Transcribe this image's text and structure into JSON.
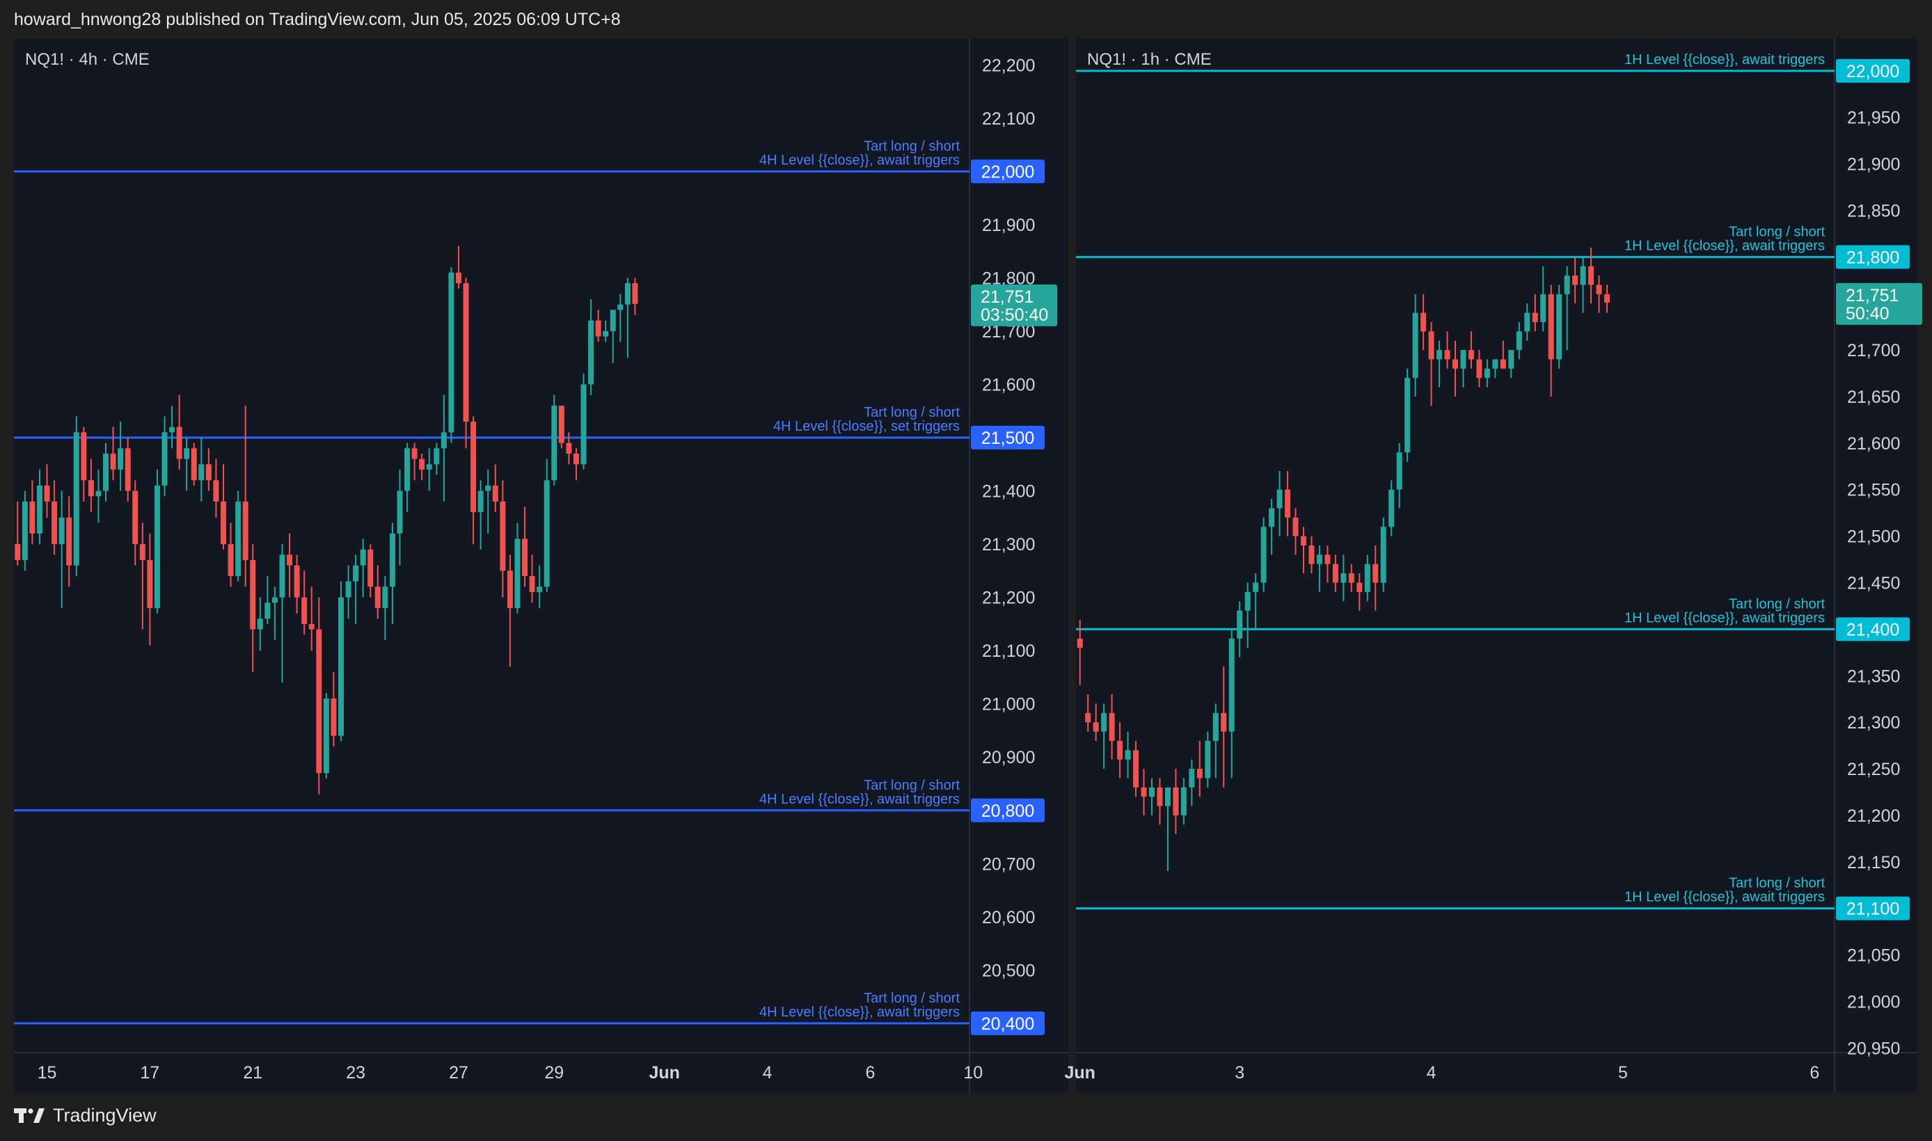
{
  "header": {
    "text": "howard_hnwong28 published on TradingView.com, Jun 05, 2025 06:09 UTC+8"
  },
  "footer": {
    "brand": "TradingView",
    "logo_icon": "tradingview-logo-icon"
  },
  "colors": {
    "background": "#131722",
    "frame": "#1e1e1e",
    "up": "#26a69a",
    "down": "#ef5350",
    "level_4h": "#2962ff",
    "level_4h_text": "#4a7dff",
    "level_1h": "#00bcd4",
    "level_1h_text": "#22c3d8",
    "price_badge": "#26a69a"
  },
  "chart_data": [
    {
      "type": "candlestick",
      "title": "NQ1! · 4h · CME",
      "symbol": "NQ1!",
      "interval": "4h",
      "exchange": "CME",
      "ylim": [
        20345,
        22250
      ],
      "y_ticks": [
        "22,200",
        "22,100",
        "21,900",
        "21,800",
        "21,700",
        "21,600",
        "21,400",
        "21,300",
        "21,200",
        "21,100",
        "21,000",
        "20,900",
        "20,700",
        "20,600",
        "20,500"
      ],
      "y_tick_values": [
        22200,
        22100,
        21900,
        21800,
        21700,
        21600,
        21400,
        21300,
        21200,
        21100,
        21000,
        20900,
        20700,
        20600,
        20500
      ],
      "x_ticks": [
        "15",
        "17",
        "21",
        "23",
        "27",
        "29",
        "Jun",
        "4",
        "6",
        "10"
      ],
      "x_tick_bold": [
        false,
        false,
        false,
        false,
        false,
        false,
        true,
        false,
        false,
        false
      ],
      "candle_count_span": 130,
      "x_tick_index": [
        4,
        18,
        32,
        46,
        60,
        73,
        88,
        102,
        116,
        130
      ],
      "levels": [
        {
          "price": 22000,
          "badge": "22,000",
          "line1": "Tart long / short",
          "line2": "4H Level {{close}}, await triggers"
        },
        {
          "price": 21500,
          "badge": "21,500",
          "line1": "Tart long / short",
          "line2": "4H Level {{close}}, set triggers"
        },
        {
          "price": 20800,
          "badge": "20,800",
          "line1": "Tart long / short",
          "line2": "4H Level {{close}}, await triggers"
        },
        {
          "price": 20400,
          "badge": "20,400",
          "line1": "Tart long / short",
          "line2": "4H Level {{close}}, await triggers"
        }
      ],
      "last_price": {
        "price": 21751,
        "badge": "21,751",
        "countdown": "03:50:40"
      },
      "candles": [
        [
          21300,
          21380,
          21260,
          21270
        ],
        [
          21270,
          21400,
          21250,
          21380
        ],
        [
          21380,
          21420,
          21300,
          21320
        ],
        [
          21320,
          21440,
          21300,
          21410
        ],
        [
          21410,
          21450,
          21350,
          21380
        ],
        [
          21380,
          21420,
          21280,
          21300
        ],
        [
          21300,
          21400,
          21180,
          21350
        ],
        [
          21350,
          21390,
          21220,
          21260
        ],
        [
          21260,
          21540,
          21240,
          21510
        ],
        [
          21510,
          21520,
          21380,
          21420
        ],
        [
          21420,
          21460,
          21360,
          21390
        ],
        [
          21390,
          21440,
          21340,
          21400
        ],
        [
          21400,
          21490,
          21380,
          21470
        ],
        [
          21470,
          21520,
          21420,
          21440
        ],
        [
          21440,
          21530,
          21400,
          21480
        ],
        [
          21480,
          21500,
          21380,
          21400
        ],
        [
          21400,
          21420,
          21260,
          21300
        ],
        [
          21300,
          21340,
          21140,
          21270
        ],
        [
          21270,
          21320,
          21110,
          21180
        ],
        [
          21180,
          21440,
          21170,
          21410
        ],
        [
          21410,
          21540,
          21390,
          21510
        ],
        [
          21510,
          21560,
          21480,
          21520
        ],
        [
          21520,
          21580,
          21440,
          21460
        ],
        [
          21460,
          21500,
          21400,
          21480
        ],
        [
          21480,
          21490,
          21410,
          21420
        ],
        [
          21420,
          21500,
          21380,
          21450
        ],
        [
          21450,
          21480,
          21400,
          21420
        ],
        [
          21420,
          21460,
          21350,
          21380
        ],
        [
          21380,
          21450,
          21290,
          21300
        ],
        [
          21300,
          21340,
          21220,
          21240
        ],
        [
          21240,
          21400,
          21230,
          21380
        ],
        [
          21380,
          21560,
          21220,
          21270
        ],
        [
          21270,
          21300,
          21060,
          21140
        ],
        [
          21140,
          21200,
          21100,
          21160
        ],
        [
          21160,
          21240,
          21150,
          21190
        ],
        [
          21190,
          21220,
          21120,
          21200
        ],
        [
          21200,
          21300,
          21040,
          21280
        ],
        [
          21280,
          21320,
          21200,
          21260
        ],
        [
          21260,
          21280,
          21170,
          21200
        ],
        [
          21200,
          21250,
          21130,
          21150
        ],
        [
          21150,
          21220,
          21100,
          21140
        ],
        [
          21140,
          21200,
          20830,
          20870
        ],
        [
          20870,
          21020,
          20860,
          21010
        ],
        [
          21010,
          21060,
          20920,
          20940
        ],
        [
          20940,
          21230,
          20930,
          21200
        ],
        [
          21200,
          21260,
          21160,
          21230
        ],
        [
          21230,
          21280,
          21150,
          21260
        ],
        [
          21260,
          21310,
          21200,
          21290
        ],
        [
          21290,
          21300,
          21200,
          21220
        ],
        [
          21220,
          21260,
          21160,
          21180
        ],
        [
          21180,
          21240,
          21120,
          21220
        ],
        [
          21220,
          21340,
          21150,
          21320
        ],
        [
          21320,
          21440,
          21260,
          21400
        ],
        [
          21400,
          21490,
          21360,
          21480
        ],
        [
          21480,
          21490,
          21420,
          21460
        ],
        [
          21460,
          21470,
          21420,
          21440
        ],
        [
          21440,
          21480,
          21400,
          21450
        ],
        [
          21450,
          21490,
          21430,
          21480
        ],
        [
          21480,
          21580,
          21380,
          21510
        ],
        [
          21510,
          21820,
          21490,
          21810
        ],
        [
          21810,
          21860,
          21780,
          21790
        ],
        [
          21790,
          21800,
          21480,
          21530
        ],
        [
          21530,
          21540,
          21300,
          21360
        ],
        [
          21360,
          21420,
          21290,
          21400
        ],
        [
          21400,
          21440,
          21320,
          21410
        ],
        [
          21410,
          21450,
          21360,
          21380
        ],
        [
          21380,
          21420,
          21200,
          21250
        ],
        [
          21250,
          21280,
          21070,
          21180
        ],
        [
          21180,
          21340,
          21170,
          21310
        ],
        [
          21310,
          21370,
          21220,
          21240
        ],
        [
          21240,
          21280,
          21190,
          21210
        ],
        [
          21210,
          21260,
          21180,
          21220
        ],
        [
          21220,
          21460,
          21210,
          21420
        ],
        [
          21420,
          21580,
          21410,
          21560
        ],
        [
          21560,
          21560,
          21480,
          21490
        ],
        [
          21490,
          21510,
          21450,
          21470
        ],
        [
          21470,
          21480,
          21420,
          21450
        ],
        [
          21450,
          21620,
          21440,
          21600
        ],
        [
          21600,
          21760,
          21580,
          21720
        ],
        [
          21720,
          21740,
          21680,
          21690
        ],
        [
          21690,
          21720,
          21680,
          21700
        ],
        [
          21700,
          21740,
          21640,
          21740
        ],
        [
          21740,
          21770,
          21680,
          21750
        ],
        [
          21750,
          21800,
          21650,
          21790
        ],
        [
          21790,
          21800,
          21730,
          21751
        ]
      ]
    },
    {
      "type": "candlestick",
      "title": "NQ1! · 1h · CME",
      "symbol": "NQ1!",
      "interval": "1h",
      "exchange": "CME",
      "ylim": [
        20945,
        22035
      ],
      "y_ticks": [
        "21,950",
        "21,900",
        "21,850",
        "21,700",
        "21,650",
        "21,600",
        "21,550",
        "21,500",
        "21,450",
        "21,350",
        "21,300",
        "21,250",
        "21,200",
        "21,150",
        "21,050",
        "21,000",
        "20,950"
      ],
      "y_tick_values": [
        21950,
        21900,
        21850,
        21700,
        21650,
        21600,
        21550,
        21500,
        21450,
        21350,
        21300,
        21250,
        21200,
        21150,
        21050,
        21000,
        20950
      ],
      "x_ticks": [
        "Jun",
        "3",
        "4",
        "5",
        "6"
      ],
      "x_tick_bold": [
        true,
        false,
        false,
        false,
        false
      ],
      "candle_count_span": 95,
      "x_tick_index": [
        0,
        20,
        44,
        68,
        92
      ],
      "levels": [
        {
          "price": 22000,
          "badge": "22,000",
          "line1": "",
          "line2": "1H Level {{close}}, await triggers"
        },
        {
          "price": 21800,
          "badge": "21,800",
          "line1": "Tart long / short",
          "line2": "1H Level {{close}}, await triggers"
        },
        {
          "price": 21400,
          "badge": "21,400",
          "line1": "Tart long / short",
          "line2": "1H Level {{close}}, await triggers"
        },
        {
          "price": 21100,
          "badge": "21,100",
          "line1": "Tart long / short",
          "line2": "1H Level {{close}}, await triggers"
        }
      ],
      "last_price": {
        "price": 21751,
        "badge": "21,751",
        "countdown": "50:40"
      },
      "candles": [
        [
          21390,
          21410,
          21340,
          21380
        ],
        [
          21310,
          21330,
          21290,
          21300
        ],
        [
          21300,
          21320,
          21280,
          21290
        ],
        [
          21290,
          21320,
          21250,
          21310
        ],
        [
          21310,
          21330,
          21260,
          21280
        ],
        [
          21280,
          21300,
          21240,
          21260
        ],
        [
          21260,
          21290,
          21240,
          21270
        ],
        [
          21270,
          21280,
          21220,
          21230
        ],
        [
          21230,
          21250,
          21200,
          21220
        ],
        [
          21220,
          21240,
          21200,
          21230
        ],
        [
          21230,
          21240,
          21190,
          21210
        ],
        [
          21210,
          21230,
          21140,
          21230
        ],
        [
          21230,
          21250,
          21180,
          21200
        ],
        [
          21200,
          21240,
          21190,
          21230
        ],
        [
          21230,
          21260,
          21210,
          21250
        ],
        [
          21250,
          21280,
          21220,
          21240
        ],
        [
          21240,
          21290,
          21230,
          21280
        ],
        [
          21280,
          21320,
          21240,
          21310
        ],
        [
          21310,
          21360,
          21230,
          21290
        ],
        [
          21290,
          21400,
          21240,
          21390
        ],
        [
          21390,
          21430,
          21370,
          21420
        ],
        [
          21420,
          21450,
          21380,
          21440
        ],
        [
          21440,
          21460,
          21400,
          21450
        ],
        [
          21450,
          21520,
          21440,
          21510
        ],
        [
          21510,
          21540,
          21480,
          21530
        ],
        [
          21530,
          21570,
          21500,
          21550
        ],
        [
          21550,
          21570,
          21500,
          21520
        ],
        [
          21520,
          21530,
          21480,
          21500
        ],
        [
          21500,
          21510,
          21460,
          21490
        ],
        [
          21490,
          21500,
          21460,
          21470
        ],
        [
          21470,
          21490,
          21440,
          21480
        ],
        [
          21480,
          21490,
          21450,
          21470
        ],
        [
          21470,
          21480,
          21440,
          21450
        ],
        [
          21450,
          21480,
          21430,
          21460
        ],
        [
          21460,
          21470,
          21440,
          21450
        ],
        [
          21450,
          21460,
          21420,
          21440
        ],
        [
          21440,
          21480,
          21430,
          21470
        ],
        [
          21470,
          21490,
          21420,
          21450
        ],
        [
          21450,
          21520,
          21440,
          21510
        ],
        [
          21510,
          21560,
          21500,
          21550
        ],
        [
          21550,
          21600,
          21530,
          21590
        ],
        [
          21590,
          21680,
          21580,
          21670
        ],
        [
          21670,
          21760,
          21650,
          21740
        ],
        [
          21740,
          21760,
          21700,
          21720
        ],
        [
          21720,
          21730,
          21640,
          21690
        ],
        [
          21690,
          21710,
          21660,
          21700
        ],
        [
          21700,
          21720,
          21680,
          21690
        ],
        [
          21690,
          21710,
          21650,
          21680
        ],
        [
          21680,
          21700,
          21660,
          21700
        ],
        [
          21700,
          21720,
          21680,
          21690
        ],
        [
          21690,
          21700,
          21660,
          21670
        ],
        [
          21670,
          21690,
          21660,
          21680
        ],
        [
          21680,
          21690,
          21670,
          21690
        ],
        [
          21690,
          21710,
          21680,
          21680
        ],
        [
          21680,
          21700,
          21670,
          21700
        ],
        [
          21700,
          21730,
          21690,
          21720
        ],
        [
          21720,
          21750,
          21710,
          21740
        ],
        [
          21740,
          21760,
          21720,
          21730
        ],
        [
          21730,
          21790,
          21720,
          21760
        ],
        [
          21760,
          21770,
          21650,
          21690
        ],
        [
          21690,
          21770,
          21680,
          21760
        ],
        [
          21760,
          21790,
          21700,
          21780
        ],
        [
          21780,
          21800,
          21750,
          21770
        ],
        [
          21770,
          21800,
          21740,
          21790
        ],
        [
          21790,
          21810,
          21750,
          21770
        ],
        [
          21770,
          21780,
          21740,
          21760
        ],
        [
          21760,
          21770,
          21740,
          21751
        ]
      ]
    }
  ]
}
